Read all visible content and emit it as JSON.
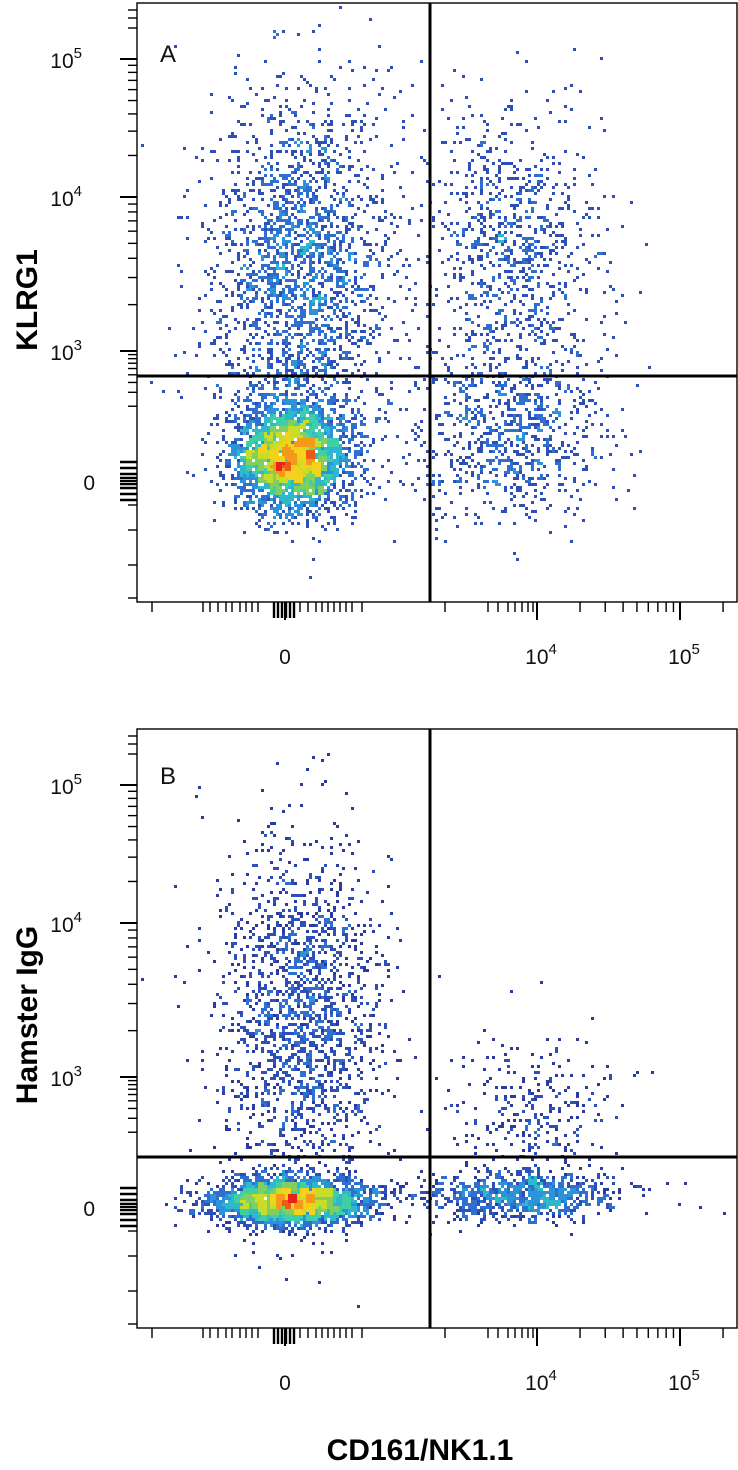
{
  "chart_data": [
    {
      "type": "scatter",
      "panel": "A",
      "xlabel": "",
      "ylabel": "KLRG1",
      "x_ticks": [
        "0",
        "10^4",
        "10^5"
      ],
      "y_ticks": [
        "0",
        "10^3",
        "10^4",
        "10^5"
      ],
      "quadrant_gate": {
        "x": 1800,
        "y": 650
      },
      "populations": [
        {
          "x_center": 0,
          "y_center": 0,
          "density": "high",
          "points": 3000
        },
        {
          "x_center": 0,
          "y_center": 8000,
          "density": "medium",
          "points": 2200
        },
        {
          "x_center": 8000,
          "y_center": 5000,
          "density": "low",
          "points": 900
        },
        {
          "x_center": 8000,
          "y_center": 0,
          "density": "low",
          "points": 800
        }
      ],
      "colors": {
        "low": "#2f4fb8",
        "mid": "#2fc0c8",
        "high": "#e8211a"
      }
    },
    {
      "type": "scatter",
      "panel": "B",
      "xlabel": "CD161/NK1.1",
      "ylabel": "Hamster IgG",
      "x_ticks": [
        "0",
        "10^4",
        "10^5"
      ],
      "y_ticks": [
        "0",
        "10^3",
        "10^4",
        "10^5"
      ],
      "quadrant_gate": {
        "x": 1800,
        "y": 250
      },
      "populations": [
        {
          "x_center": 0,
          "y_center": 0,
          "density": "high",
          "points": 2600
        },
        {
          "x_center": 0,
          "y_center": 3000,
          "density": "medium",
          "points": 1800
        },
        {
          "x_center": 8000,
          "y_center": 0,
          "density": "low",
          "points": 900
        },
        {
          "x_center": 8000,
          "y_center": 1500,
          "density": "low",
          "points": 300
        }
      ],
      "colors": {
        "low": "#2f4fb8",
        "mid": "#2fc0c8",
        "high": "#e8211a"
      }
    }
  ]
}
